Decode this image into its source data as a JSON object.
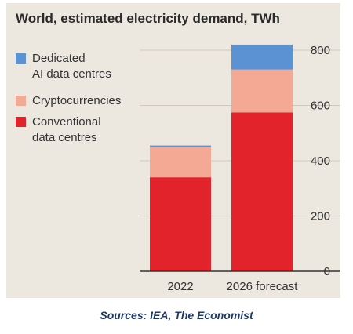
{
  "chart_data": {
    "type": "bar",
    "stacked": true,
    "title": "World, estimated electricity demand, TWh",
    "categories": [
      "2022",
      "2026 forecast"
    ],
    "series": [
      {
        "name": "Conventional data centres",
        "values": [
          340,
          575
        ],
        "color": "#e3232b"
      },
      {
        "name": "Cryptocurrencies",
        "values": [
          110,
          155
        ],
        "color": "#f4a994"
      },
      {
        "name": "Dedicated AI data centres",
        "values": [
          5,
          90
        ],
        "color": "#5b92d3"
      }
    ],
    "legend": [
      "Dedicated AI data centres",
      "Cryptocurrencies",
      "Conventional data centres"
    ],
    "legend_lines": [
      [
        "Dedicated",
        "AI data centres"
      ],
      [
        "Cryptocurrencies"
      ],
      [
        "Conventional",
        "data centres"
      ]
    ],
    "legend_placement": "top-left",
    "ylim": [
      0,
      800
    ],
    "yticks": [
      0,
      200,
      400,
      600,
      800
    ],
    "y_axis_side": "right",
    "grid": true,
    "xlabel": "",
    "ylabel": ""
  },
  "source": "Sources: IEA, The Economist"
}
